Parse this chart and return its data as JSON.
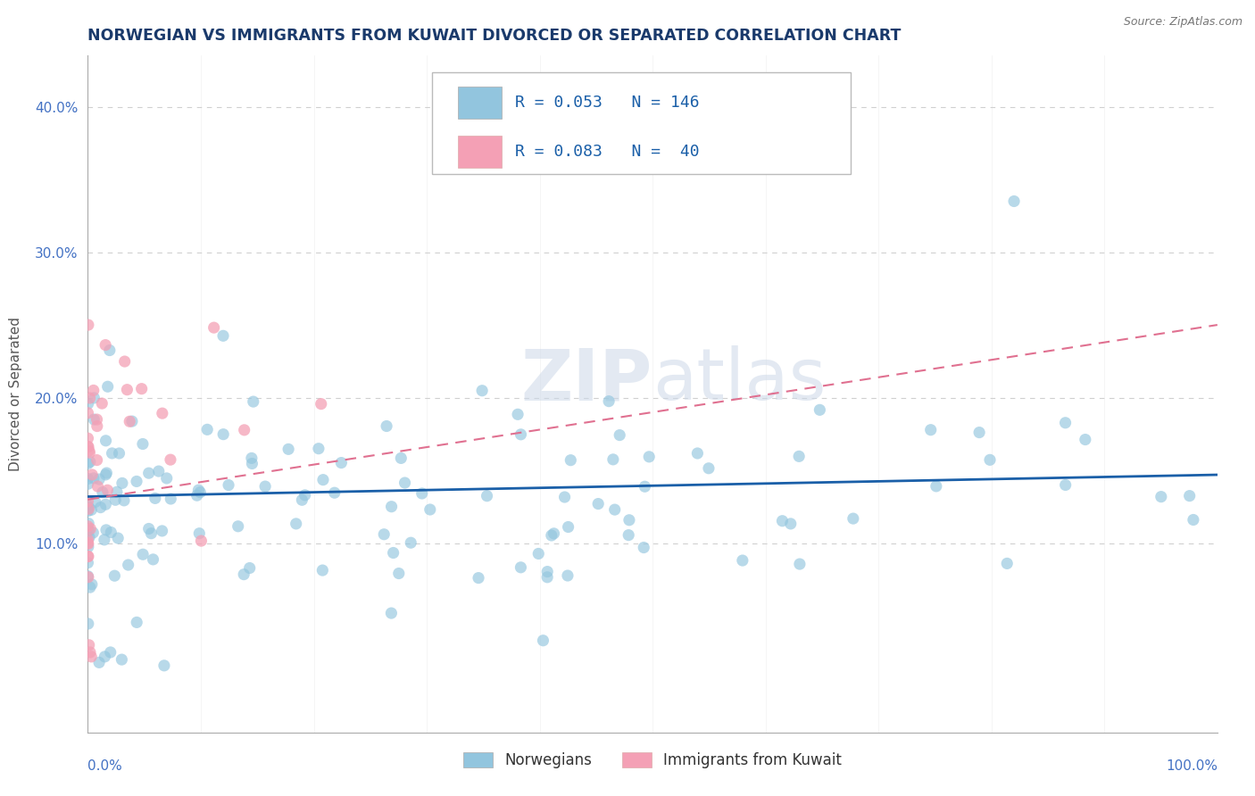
{
  "title": "NORWEGIAN VS IMMIGRANTS FROM KUWAIT DIVORCED OR SEPARATED CORRELATION CHART",
  "source": "Source: ZipAtlas.com",
  "ylabel": "Divorced or Separated",
  "watermark": "ZIPatlas",
  "legend_R_norwegian": "R = 0.053",
  "legend_N_norwegian": "N = 146",
  "legend_R_kuwait": "R = 0.083",
  "legend_N_kuwait": "N =  40",
  "ytick_vals": [
    0.1,
    0.2,
    0.3,
    0.4
  ],
  "ytick_labels": [
    "10.0%",
    "20.0%",
    "30.0%",
    "40.0%"
  ],
  "xlim": [
    0.0,
    1.0
  ],
  "ylim": [
    -0.03,
    0.435
  ],
  "norwegian_color": "#92c5de",
  "kuwait_color": "#f4a0b5",
  "trend_norwegian_color": "#1a5fa8",
  "trend_kuwait_color": "#e07090",
  "background_color": "#ffffff",
  "grid_color": "#d0d0d0",
  "title_color": "#1a3a6b",
  "source_color": "#777777",
  "tick_color": "#4472c4",
  "ylabel_color": "#555555",
  "legend_text_color": "#1a5fa8",
  "bottom_legend_color": "#333333",
  "nor_trend_start_y": 0.132,
  "nor_trend_end_y": 0.147,
  "kuw_trend_start_y": 0.13,
  "kuw_trend_end_y": 0.25,
  "title_fontsize": 12.5,
  "axis_label_fontsize": 11,
  "tick_fontsize": 11,
  "legend_fontsize": 13
}
